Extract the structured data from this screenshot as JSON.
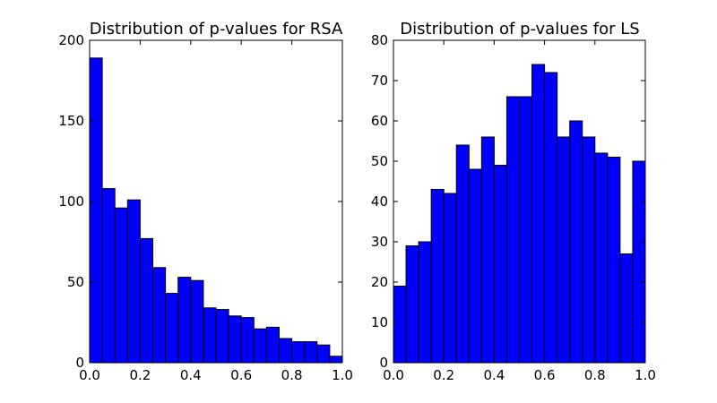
{
  "chart_data": [
    {
      "type": "bar",
      "title": "Distribution of p-values for RSA",
      "xlabel": "",
      "ylabel": "",
      "xlim": [
        0,
        1
      ],
      "ylim": [
        0,
        200
      ],
      "bin_edges": [
        0.0,
        0.05,
        0.1,
        0.15,
        0.2,
        0.25,
        0.3,
        0.35,
        0.4,
        0.45,
        0.5,
        0.55,
        0.6,
        0.65,
        0.7,
        0.75,
        0.8,
        0.85,
        0.9,
        0.95,
        1.0
      ],
      "values": [
        189,
        108,
        96,
        101,
        77,
        59,
        43,
        53,
        51,
        34,
        33,
        29,
        28,
        21,
        22,
        15,
        13,
        13,
        11,
        4
      ],
      "xticks": [
        "0.0",
        "0.2",
        "0.4",
        "0.6",
        "0.8",
        "1.0"
      ],
      "xtick_values": [
        0.0,
        0.2,
        0.4,
        0.6,
        0.8,
        1.0
      ],
      "yticks": [
        "0",
        "50",
        "100",
        "150",
        "200"
      ],
      "ytick_values": [
        0,
        50,
        100,
        150,
        200
      ],
      "grid": false,
      "bar_color": "#0000ff"
    },
    {
      "type": "bar",
      "title": "Distribution of p-values for LS",
      "xlabel": "",
      "ylabel": "",
      "xlim": [
        0,
        1
      ],
      "ylim": [
        0,
        80
      ],
      "bin_edges": [
        0.0,
        0.05,
        0.1,
        0.15,
        0.2,
        0.25,
        0.3,
        0.35,
        0.4,
        0.45,
        0.5,
        0.55,
        0.6,
        0.65,
        0.7,
        0.75,
        0.8,
        0.85,
        0.9,
        0.95,
        1.0
      ],
      "values": [
        19,
        29,
        30,
        43,
        42,
        54,
        48,
        56,
        49,
        66,
        66,
        74,
        72,
        56,
        60,
        56,
        52,
        51,
        27,
        50
      ],
      "xticks": [
        "0.0",
        "0.2",
        "0.4",
        "0.6",
        "0.8",
        "1.0"
      ],
      "xtick_values": [
        0.0,
        0.2,
        0.4,
        0.6,
        0.8,
        1.0
      ],
      "yticks": [
        "0",
        "10",
        "20",
        "30",
        "40",
        "50",
        "60",
        "70",
        "80"
      ],
      "ytick_values": [
        0,
        10,
        20,
        30,
        40,
        50,
        60,
        70,
        80
      ],
      "grid": false,
      "bar_color": "#0000ff"
    }
  ]
}
